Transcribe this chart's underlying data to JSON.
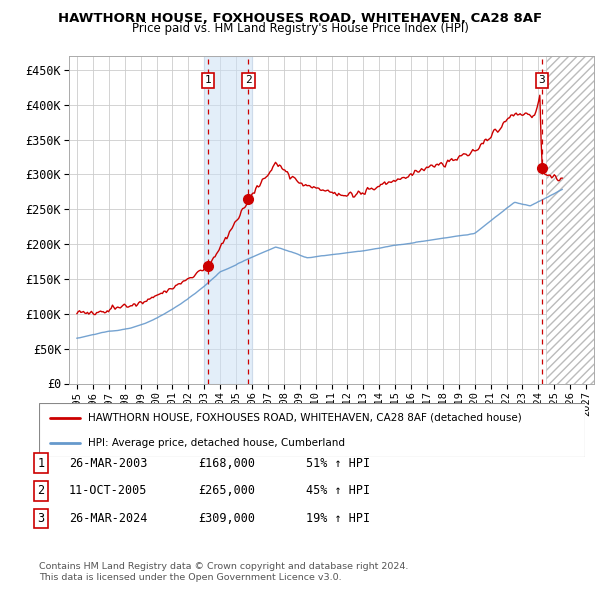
{
  "title": "HAWTHORN HOUSE, FOXHOUSES ROAD, WHITEHAVEN, CA28 8AF",
  "subtitle": "Price paid vs. HM Land Registry's House Price Index (HPI)",
  "legend_house": "HAWTHORN HOUSE, FOXHOUSES ROAD, WHITEHAVEN, CA28 8AF (detached house)",
  "legend_hpi": "HPI: Average price, detached house, Cumberland",
  "footnote1": "Contains HM Land Registry data © Crown copyright and database right 2024.",
  "footnote2": "This data is licensed under the Open Government Licence v3.0.",
  "transactions": [
    {
      "label": "1",
      "date": "26-MAR-2003",
      "price": 168000,
      "pct": "51%",
      "dir": "↑",
      "x_year": 2003.23
    },
    {
      "label": "2",
      "date": "11-OCT-2005",
      "price": 265000,
      "pct": "45%",
      "dir": "↑",
      "x_year": 2005.78
    },
    {
      "label": "3",
      "date": "26-MAR-2024",
      "price": 309000,
      "pct": "19%",
      "dir": "↑",
      "x_year": 2024.23
    }
  ],
  "ylim": [
    0,
    470000
  ],
  "xlim_start": 1994.5,
  "xlim_end": 2027.5,
  "yticks": [
    0,
    50000,
    100000,
    150000,
    200000,
    250000,
    300000,
    350000,
    400000,
    450000
  ],
  "ytick_labels": [
    "£0",
    "£50K",
    "£100K",
    "£150K",
    "£200K",
    "£250K",
    "£300K",
    "£350K",
    "£400K",
    "£450K"
  ],
  "xticks": [
    1995,
    1996,
    1997,
    1998,
    1999,
    2000,
    2001,
    2002,
    2003,
    2004,
    2005,
    2006,
    2007,
    2008,
    2009,
    2010,
    2011,
    2012,
    2013,
    2014,
    2015,
    2016,
    2017,
    2018,
    2019,
    2020,
    2021,
    2022,
    2023,
    2024,
    2025,
    2026,
    2027
  ],
  "house_color": "#cc0000",
  "hpi_color": "#6699cc",
  "background_color": "#ffffff",
  "grid_color": "#cccccc",
  "shaded_region_start": 2003.0,
  "shaded_region_end": 2006.0,
  "hatch_region_start": 2024.5,
  "hatch_region_end": 2027.5
}
